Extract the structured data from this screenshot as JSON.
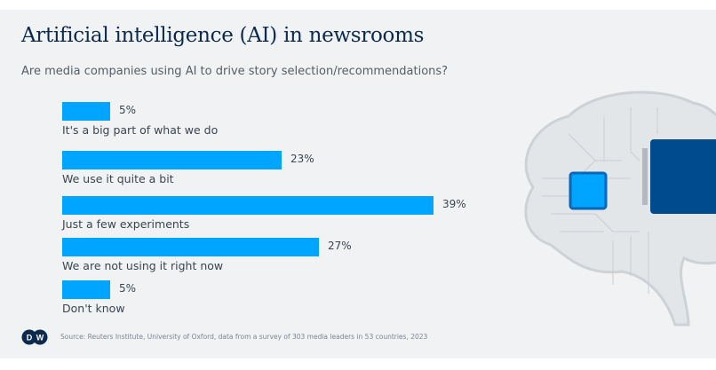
{
  "title": "Artificial intelligence (AI) in newsrooms",
  "subtitle": "Are media companies using AI to drive story selection/recommendations?",
  "source": "Source: Reuters Institute, University of Oxford, data from a survey of 303 media leaders in 53 countries, 2023",
  "logo_text": "DW",
  "colors": {
    "bar": "#00a5ff",
    "title": "#0c2a4d",
    "panel": "#f0f2f4",
    "chip_dark": "#004b8d"
  },
  "chart_data": {
    "type": "bar",
    "orientation": "horizontal",
    "title": "Artificial intelligence (AI) in newsrooms",
    "categories": [
      "It's a big part of what we do",
      "We use it quite a bit",
      "Just a few experiments",
      "We are not using it right now",
      "Don't know"
    ],
    "values": [
      5,
      23,
      39,
      27,
      5
    ],
    "value_labels": [
      "5%",
      "23%",
      "39%",
      "27%",
      "5%"
    ],
    "unit": "%",
    "xlim": [
      0,
      39
    ],
    "grid": false
  }
}
